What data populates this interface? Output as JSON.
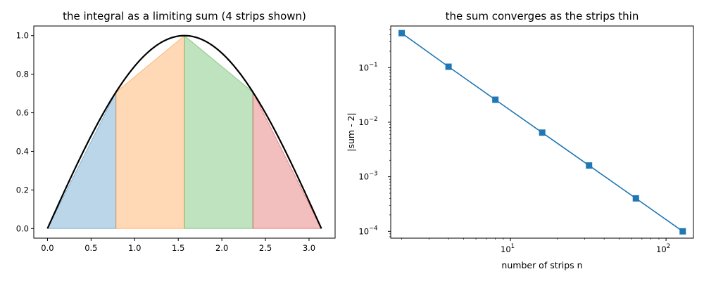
{
  "chart_data": [
    {
      "type": "area",
      "title": "the integral as a limiting sum (4 strips shown)",
      "xlabel": "",
      "ylabel": "",
      "xlim": [
        -0.157,
        3.299
      ],
      "ylim": [
        -0.05,
        1.05
      ],
      "xticks": [
        "0.0",
        "0.5",
        "1.0",
        "1.5",
        "2.0",
        "2.5",
        "3.0"
      ],
      "xtick_values": [
        0,
        0.5,
        1.0,
        1.5,
        2.0,
        2.5,
        3.0
      ],
      "yticks": [
        "0.0",
        "0.2",
        "0.4",
        "0.6",
        "0.8",
        "1.0"
      ],
      "ytick_values": [
        0,
        0.2,
        0.4,
        0.6,
        0.8,
        1.0
      ],
      "grid": false,
      "curve": {
        "function": "sin(x)",
        "x_start": 0,
        "x_end": 3.14159,
        "color": "#000000"
      },
      "strips": [
        {
          "x": [
            0.0,
            0.7854
          ],
          "y": [
            0.0,
            0.7071
          ],
          "color": "#1f77b4"
        },
        {
          "x": [
            0.7854,
            1.5708
          ],
          "y": [
            0.7071,
            1.0
          ],
          "color": "#ff7f0e"
        },
        {
          "x": [
            1.5708,
            2.3562
          ],
          "y": [
            1.0,
            0.7071
          ],
          "color": "#2ca02c"
        },
        {
          "x": [
            2.3562,
            3.1416
          ],
          "y": [
            0.7071,
            0.0
          ],
          "color": "#d62728"
        }
      ]
    },
    {
      "type": "line",
      "title": "the sum converges as the strips thin",
      "xlabel": "number of strips n",
      "ylabel": "|sum - 2|",
      "xscale": "log",
      "yscale": "log",
      "xlim": [
        1.7,
        150
      ],
      "ylim": [
        7.5e-05,
        0.58
      ],
      "xticks": [
        {
          "base": "10",
          "exp": "1",
          "value": 10
        },
        {
          "base": "10",
          "exp": "2",
          "value": 100
        }
      ],
      "yticks": [
        {
          "base": "10",
          "exp": "−1",
          "value": 0.1
        },
        {
          "base": "10",
          "exp": "−2",
          "value": 0.01
        },
        {
          "base": "10",
          "exp": "−3",
          "value": 0.001
        },
        {
          "base": "10",
          "exp": "−4",
          "value": 0.0001
        }
      ],
      "grid": false,
      "series": [
        {
          "x": [
            2,
            4,
            8,
            16,
            32,
            64,
            128
          ],
          "y": [
            0.429,
            0.1039,
            0.0258,
            0.00644,
            0.00161,
            0.000402,
            0.0001
          ],
          "color": "#1f77b4",
          "marker": "square"
        }
      ]
    }
  ]
}
